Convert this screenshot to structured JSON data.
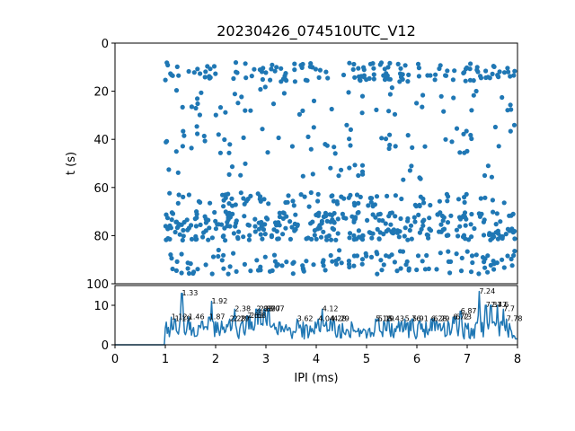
{
  "chart_data": [
    {
      "type": "scatter",
      "title": "20230426_074510UTC_V12",
      "xlabel": "",
      "ylabel": "t (s)",
      "xlim": [
        0,
        8
      ],
      "ylim": [
        100,
        0
      ],
      "y_inverted": true,
      "yticks": [
        0,
        20,
        40,
        60,
        80,
        100
      ],
      "marker_color": "#1f77b4",
      "series": [
        {
          "x": [],
          "y": []
        }
      ]
    },
    {
      "type": "line",
      "title": "",
      "xlabel": "IPI (ms)",
      "ylabel": "",
      "xlim": [
        0,
        8
      ],
      "ylim": [
        0,
        15
      ],
      "xticks": [
        0,
        1,
        2,
        3,
        4,
        5,
        6,
        7,
        8
      ],
      "yticks": [
        0,
        10
      ],
      "line_color": "#1f77b4",
      "series": [
        {
          "x": [],
          "y": []
        }
      ],
      "peak_labels": [
        {
          "text": "1.33",
          "x": 1.33,
          "y": 12.5
        },
        {
          "text": "1.12",
          "x": 1.12,
          "y": 6.5
        },
        {
          "text": "1.19",
          "x": 1.19,
          "y": 6.0
        },
        {
          "text": "1.46",
          "x": 1.46,
          "y": 6.5
        },
        {
          "text": "1.92",
          "x": 1.92,
          "y": 10.5
        },
        {
          "text": "1.87",
          "x": 1.87,
          "y": 6.5
        },
        {
          "text": "2.38",
          "x": 2.38,
          "y": 8.5
        },
        {
          "text": "2.28",
          "x": 2.28,
          "y": 6.0
        },
        {
          "text": "2.29",
          "x": 2.35,
          "y": 6.0
        },
        {
          "text": "2.63",
          "x": 2.63,
          "y": 6.8
        },
        {
          "text": "2.68",
          "x": 2.68,
          "y": 6.8
        },
        {
          "text": "2.81",
          "x": 2.81,
          "y": 8.5
        },
        {
          "text": "2.87",
          "x": 2.87,
          "y": 8.5
        },
        {
          "text": "2.97",
          "x": 2.97,
          "y": 8.5
        },
        {
          "text": "3.07",
          "x": 3.05,
          "y": 8.5
        },
        {
          "text": "3.62",
          "x": 3.62,
          "y": 6.0
        },
        {
          "text": "4.12",
          "x": 4.12,
          "y": 8.5
        },
        {
          "text": "4.04",
          "x": 4.04,
          "y": 6.0
        },
        {
          "text": "4.28",
          "x": 4.28,
          "y": 6.0
        },
        {
          "text": "4.29",
          "x": 4.34,
          "y": 6.0
        },
        {
          "text": "5.18",
          "x": 5.18,
          "y": 6.0
        },
        {
          "text": "5.19",
          "x": 5.23,
          "y": 6.0
        },
        {
          "text": "5.43",
          "x": 5.43,
          "y": 6.0
        },
        {
          "text": "5.76",
          "x": 5.76,
          "y": 6.0
        },
        {
          "text": "5.91",
          "x": 5.91,
          "y": 6.0
        },
        {
          "text": "6.28",
          "x": 6.28,
          "y": 6.0
        },
        {
          "text": "6.29",
          "x": 6.33,
          "y": 6.0
        },
        {
          "text": "6.72",
          "x": 6.72,
          "y": 6.5
        },
        {
          "text": "6.73",
          "x": 6.77,
          "y": 6.5
        },
        {
          "text": "6.87",
          "x": 6.87,
          "y": 8.0
        },
        {
          "text": "7.24",
          "x": 7.24,
          "y": 13.0
        },
        {
          "text": "7.37",
          "x": 7.37,
          "y": 9.5
        },
        {
          "text": "7.47",
          "x": 7.47,
          "y": 9.5
        },
        {
          "text": "7.6",
          "x": 7.6,
          "y": 9.5
        },
        {
          "text": "7.7",
          "x": 7.72,
          "y": 8.5
        },
        {
          "text": "7.78",
          "x": 7.78,
          "y": 6.0
        }
      ]
    }
  ]
}
